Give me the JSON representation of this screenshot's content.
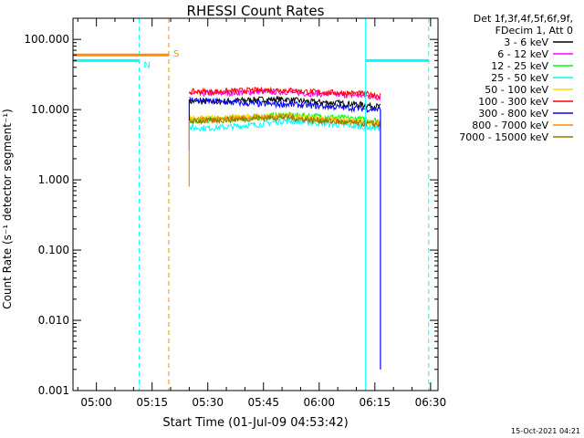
{
  "chart_data": {
    "type": "line",
    "title": "RHESSI Count Rates",
    "xlabel": "Start Time (01-Jul-09 04:53:42)",
    "ylabel": "Count Rate (s⁻¹ detector segment⁻¹)",
    "yscale": "log",
    "ylim": [
      0.001,
      200
    ],
    "xlim": [
      "04:53:42",
      "06:32:00"
    ],
    "x_ticks": [
      "05:00",
      "05:15",
      "05:30",
      "05:45",
      "06:00",
      "06:15",
      "06:30"
    ],
    "y_ticks": [
      "0.001",
      "0.010",
      "0.100",
      "1.000",
      "10.000",
      "100.000"
    ],
    "legend": {
      "position": "top-right",
      "header": [
        "Det 1f,3f,4f,5f,6f,9f,",
        "FDecim 1, Att 0"
      ],
      "entries": [
        {
          "label": "3 - 6 keV",
          "color": "#000000"
        },
        {
          "label": "6 - 12 keV",
          "color": "#ff00ff"
        },
        {
          "label": "12 - 25 keV",
          "color": "#00ff00"
        },
        {
          "label": "25 - 50 keV",
          "color": "#00ffff"
        },
        {
          "label": "50 - 100 keV",
          "color": "#ffd700"
        },
        {
          "label": "100 - 300 keV",
          "color": "#ff0000"
        },
        {
          "label": "300 - 800 keV",
          "color": "#0000ff"
        },
        {
          "label": "800 - 7000 keV",
          "color": "#ff8c00"
        },
        {
          "label": "7000 - 15000 keV",
          "color": "#808000"
        }
      ]
    },
    "series": [
      {
        "name": "3 - 6 keV",
        "color": "#000000",
        "start": "05:25:00",
        "end": "06:16:30",
        "values": [
          13,
          13,
          13.5,
          14,
          14,
          13,
          12.5,
          12,
          11
        ]
      },
      {
        "name": "6 - 12 keV",
        "color": "#ff00ff",
        "start": "05:25:00",
        "end": "06:16:30",
        "values": [
          17,
          17,
          17.5,
          18,
          18,
          17,
          16.5,
          16,
          15
        ]
      },
      {
        "name": "12 - 25 keV",
        "color": "#00ff00",
        "start": "05:25:00",
        "end": "06:16:30",
        "values": [
          7,
          7.2,
          7.6,
          8,
          8.4,
          8.2,
          7.8,
          7.4,
          7
        ]
      },
      {
        "name": "25 - 50 keV",
        "color": "#00ffff",
        "start": "05:25:00",
        "end": "06:16:30",
        "values": [
          5.5,
          5.5,
          5.8,
          6.2,
          7,
          6.6,
          6.2,
          5.8,
          5.5
        ]
      },
      {
        "name": "50 - 100 keV",
        "color": "#ffd700",
        "start": "05:25:00",
        "end": "06:16:30",
        "values": [
          7.5,
          7.6,
          7.8,
          8,
          8.2,
          7.6,
          7.2,
          6.8,
          6.5
        ]
      },
      {
        "name": "100 - 300 keV",
        "color": "#ff0000",
        "start": "05:25:00",
        "end": "06:16:30",
        "values": [
          18,
          18,
          18.5,
          19,
          19,
          18,
          17.5,
          17,
          16
        ]
      },
      {
        "name": "300 - 800 keV",
        "color": "#0000ff",
        "start": "05:25:00",
        "end": "06:16:30",
        "values": [
          14,
          13,
          12.5,
          12,
          12,
          11.5,
          11,
          10.5,
          10
        ]
      },
      {
        "name": "800 - 7000 keV",
        "color": "#ff8c00",
        "start": "05:25:00",
        "end": "06:16:30",
        "values": [
          7,
          7.2,
          7.5,
          7.8,
          8,
          7.4,
          7,
          6.6,
          6.3
        ]
      },
      {
        "name": "7000 - 15000 keV",
        "color": "#808000",
        "start": "05:25:00",
        "end": "06:16:30",
        "values": [
          6.8,
          7,
          7.3,
          7.6,
          7.8,
          7.2,
          6.8,
          6.4,
          6.1
        ]
      }
    ],
    "spikes": [
      {
        "color": "#0000ff",
        "time": "05:25:00",
        "low": 2.6
      },
      {
        "color": "#ff8c00",
        "time": "05:25:00",
        "low": 0.8
      },
      {
        "color": "#0000ff",
        "time": "06:16:30",
        "low": 0.002
      }
    ],
    "intervals": [
      {
        "label": "N",
        "color": "#00ffff",
        "level": 50,
        "spans": [
          [
            "04:53:42",
            "05:11:30"
          ],
          [
            "06:12:30",
            "06:29:30"
          ]
        ]
      },
      {
        "label": "S",
        "color": "#ff8c00",
        "level": 60,
        "spans": [
          [
            "04:53:42",
            "05:19:30"
          ]
        ]
      }
    ],
    "vlines": [
      {
        "time": "04:53:42",
        "color": "#00ffff",
        "style": "solid"
      },
      {
        "time": "05:11:30",
        "color": "#00ffff",
        "style": "dashed"
      },
      {
        "time": "05:19:30",
        "color": "#ff8c00",
        "style": "dashed"
      },
      {
        "time": "06:12:30",
        "color": "#00ffff",
        "style": "solid"
      },
      {
        "time": "06:29:30",
        "color": "#00ffff",
        "style": "dashed"
      }
    ]
  },
  "footer": {
    "timestamp": "15-Oct-2021 04:21"
  }
}
